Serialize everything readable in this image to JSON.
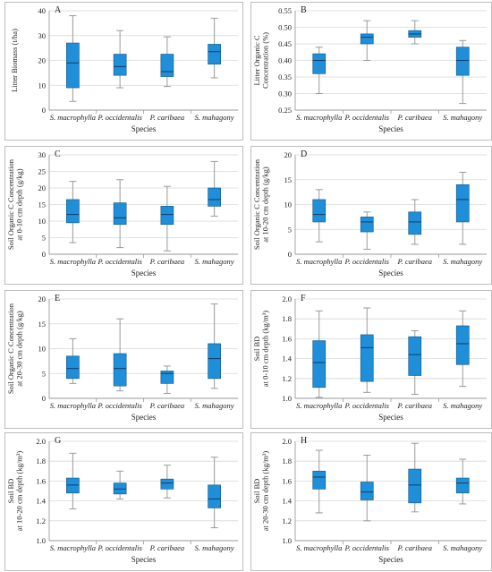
{
  "colors": {
    "box_fill": "#1f8fd9",
    "box_stroke": "#1a5f8f",
    "whisker": "#9a9a9a",
    "median": "#0e3e66",
    "grid": "#d8d8d8",
    "axis": "#9a9a9a"
  },
  "chart_data": [
    {
      "type": "box",
      "panel_letter": "A",
      "ylabel": "Litter Biomass (t/ha)",
      "xlabel": "Species",
      "categories": [
        "S. macrophylla",
        "P. occidentalis",
        "P. caribaea",
        "S. mahagony"
      ],
      "ylim": [
        0,
        40
      ],
      "yticks": [
        0,
        10,
        20,
        30,
        40
      ],
      "ytick_labels": [
        "0",
        "10",
        "20",
        "30",
        "40"
      ],
      "boxes": [
        {
          "min": 3.5,
          "q1": 9,
          "median": 19,
          "q3": 27,
          "max": 38
        },
        {
          "min": 9,
          "q1": 14,
          "median": 17.5,
          "q3": 22.5,
          "max": 32
        },
        {
          "min": 9.5,
          "q1": 13.5,
          "median": 15.5,
          "q3": 22.5,
          "max": 29.5
        },
        {
          "min": 13,
          "q1": 18.5,
          "median": 23.5,
          "q3": 26.5,
          "max": 37
        }
      ]
    },
    {
      "type": "box",
      "panel_letter": "B",
      "ylabel": "Litter Organic C Concentration (%)",
      "xlabel": "Species",
      "categories": [
        "S. macrophylla",
        "P. occidentalis",
        "P. caribaea",
        "S. mahagony"
      ],
      "ylim": [
        0.25,
        0.55
      ],
      "yticks": [
        0.25,
        0.3,
        0.35,
        0.4,
        0.45,
        0.5,
        0.55
      ],
      "ytick_labels": [
        "0.25",
        "0.30",
        "0.35",
        "0.40",
        "0.45",
        "0.50",
        "0.55"
      ],
      "boxes": [
        {
          "min": 0.3,
          "q1": 0.36,
          "median": 0.4,
          "q3": 0.42,
          "max": 0.44
        },
        {
          "min": 0.4,
          "q1": 0.45,
          "median": 0.47,
          "q3": 0.48,
          "max": 0.52
        },
        {
          "min": 0.45,
          "q1": 0.47,
          "median": 0.48,
          "q3": 0.49,
          "max": 0.52
        },
        {
          "min": 0.27,
          "q1": 0.355,
          "median": 0.4,
          "q3": 0.44,
          "max": 0.46
        }
      ]
    },
    {
      "type": "box",
      "panel_letter": "C",
      "ylabel": "Soil Organic C Concentration at 0-10 cm depth (g/kg)",
      "xlabel": "Species",
      "categories": [
        "S. macrophylla",
        "P. occidentalis",
        "P. caribaea",
        "S. mahagony"
      ],
      "ylim": [
        0,
        30
      ],
      "yticks": [
        0,
        5,
        10,
        15,
        20,
        25,
        30
      ],
      "ytick_labels": [
        "0",
        "5",
        "10",
        "15",
        "20",
        "25",
        "30"
      ],
      "boxes": [
        {
          "min": 3.5,
          "q1": 9.5,
          "median": 12,
          "q3": 16.5,
          "max": 22
        },
        {
          "min": 2,
          "q1": 9,
          "median": 11,
          "q3": 15.5,
          "max": 22.5
        },
        {
          "min": 1,
          "q1": 9,
          "median": 12,
          "q3": 14.5,
          "max": 20.5
        },
        {
          "min": 11.5,
          "q1": 14.5,
          "median": 16.5,
          "q3": 20,
          "max": 28
        }
      ]
    },
    {
      "type": "box",
      "panel_letter": "D",
      "ylabel": "Soil Organic C Concentration at 10-20 cm depth (g/kg)",
      "xlabel": "Species",
      "categories": [
        "S. macrophylla",
        "P. occidentalis",
        "P. caribaea",
        "S. mahagony"
      ],
      "ylim": [
        0,
        20
      ],
      "yticks": [
        0,
        5,
        10,
        15,
        20
      ],
      "ytick_labels": [
        "0",
        "5",
        "10",
        "15",
        "20"
      ],
      "boxes": [
        {
          "min": 2.5,
          "q1": 6.5,
          "median": 8,
          "q3": 11,
          "max": 13
        },
        {
          "min": 1,
          "q1": 4.5,
          "median": 6.5,
          "q3": 7.5,
          "max": 8.5
        },
        {
          "min": 2,
          "q1": 4,
          "median": 6.5,
          "q3": 8.5,
          "max": 11
        },
        {
          "min": 2,
          "q1": 6.5,
          "median": 11,
          "q3": 14,
          "max": 16.5
        }
      ]
    },
    {
      "type": "box",
      "panel_letter": "E",
      "ylabel": "Soil Organic C Concentration at 20-30 cm depth (g/kg)",
      "xlabel": "Species",
      "categories": [
        "S. macrophylla",
        "P. occidentalis",
        "P. caribaea",
        "S. mahagony"
      ],
      "ylim": [
        0,
        20
      ],
      "yticks": [
        0,
        5,
        10,
        15,
        20
      ],
      "ytick_labels": [
        "0",
        "5",
        "10",
        "15",
        "20"
      ],
      "boxes": [
        {
          "min": 3,
          "q1": 4,
          "median": 6,
          "q3": 8.5,
          "max": 12
        },
        {
          "min": 1.5,
          "q1": 2.5,
          "median": 6,
          "q3": 9,
          "max": 16
        },
        {
          "min": 1,
          "q1": 3,
          "median": 5,
          "q3": 5.5,
          "max": 6.5
        },
        {
          "min": 2,
          "q1": 4,
          "median": 8,
          "q3": 11,
          "max": 19
        }
      ]
    },
    {
      "type": "box",
      "panel_letter": "F",
      "ylabel": "Soil BD at 0-10 cm depth (kg/m³)",
      "xlabel": "Species",
      "categories": [
        "S. macrophylla",
        "P. occidentalis",
        "P. caribaea",
        "S. mahagony"
      ],
      "ylim": [
        1.0,
        2.0
      ],
      "yticks": [
        1.0,
        1.2,
        1.4,
        1.6,
        1.8,
        2.0
      ],
      "ytick_labels": [
        "1.0",
        "1.2",
        "1.4",
        "1.6",
        "1.8",
        "2.0"
      ],
      "boxes": [
        {
          "min": 1.01,
          "q1": 1.11,
          "median": 1.36,
          "q3": 1.58,
          "max": 1.88
        },
        {
          "min": 1.06,
          "q1": 1.17,
          "median": 1.51,
          "q3": 1.64,
          "max": 1.91
        },
        {
          "min": 1.04,
          "q1": 1.23,
          "median": 1.44,
          "q3": 1.62,
          "max": 1.68
        },
        {
          "min": 1.12,
          "q1": 1.34,
          "median": 1.55,
          "q3": 1.73,
          "max": 1.88
        }
      ]
    },
    {
      "type": "box",
      "panel_letter": "G",
      "ylabel": "Soil BD at 10-20 cm depth (kg/m³)",
      "xlabel": "Species",
      "categories": [
        "S. macrophylla",
        "P. occidentalis",
        "P. caribaea",
        "S. mahagony"
      ],
      "ylim": [
        1.0,
        2.0
      ],
      "yticks": [
        1.0,
        1.2,
        1.4,
        1.6,
        1.8,
        2.0
      ],
      "ytick_labels": [
        "1.0",
        "1.2",
        "1.4",
        "1.6",
        "1.8",
        "2.0"
      ],
      "boxes": [
        {
          "min": 1.32,
          "q1": 1.48,
          "median": 1.56,
          "q3": 1.63,
          "max": 1.88
        },
        {
          "min": 1.42,
          "q1": 1.47,
          "median": 1.52,
          "q3": 1.58,
          "max": 1.7
        },
        {
          "min": 1.43,
          "q1": 1.52,
          "median": 1.58,
          "q3": 1.62,
          "max": 1.76
        },
        {
          "min": 1.13,
          "q1": 1.33,
          "median": 1.42,
          "q3": 1.56,
          "max": 1.84
        }
      ]
    },
    {
      "type": "box",
      "panel_letter": "H",
      "ylabel": "Soil BD at 20-30 cm depth (kg/m³)",
      "xlabel": "Species",
      "categories": [
        "S. macrophylla",
        "P. occidentalis",
        "P. caribaea",
        "S. mahagony"
      ],
      "ylim": [
        1.0,
        2.0
      ],
      "yticks": [
        1.0,
        1.2,
        1.4,
        1.6,
        1.8,
        2.0
      ],
      "ytick_labels": [
        "1.0",
        "1.2",
        "1.4",
        "1.6",
        "1.8",
        "2.0"
      ],
      "boxes": [
        {
          "min": 1.28,
          "q1": 1.52,
          "median": 1.64,
          "q3": 1.7,
          "max": 1.91
        },
        {
          "min": 1.2,
          "q1": 1.41,
          "median": 1.49,
          "q3": 1.59,
          "max": 1.86
        },
        {
          "min": 1.29,
          "q1": 1.38,
          "median": 1.56,
          "q3": 1.72,
          "max": 1.98
        },
        {
          "min": 1.37,
          "q1": 1.48,
          "median": 1.58,
          "q3": 1.63,
          "max": 1.82
        }
      ]
    }
  ]
}
